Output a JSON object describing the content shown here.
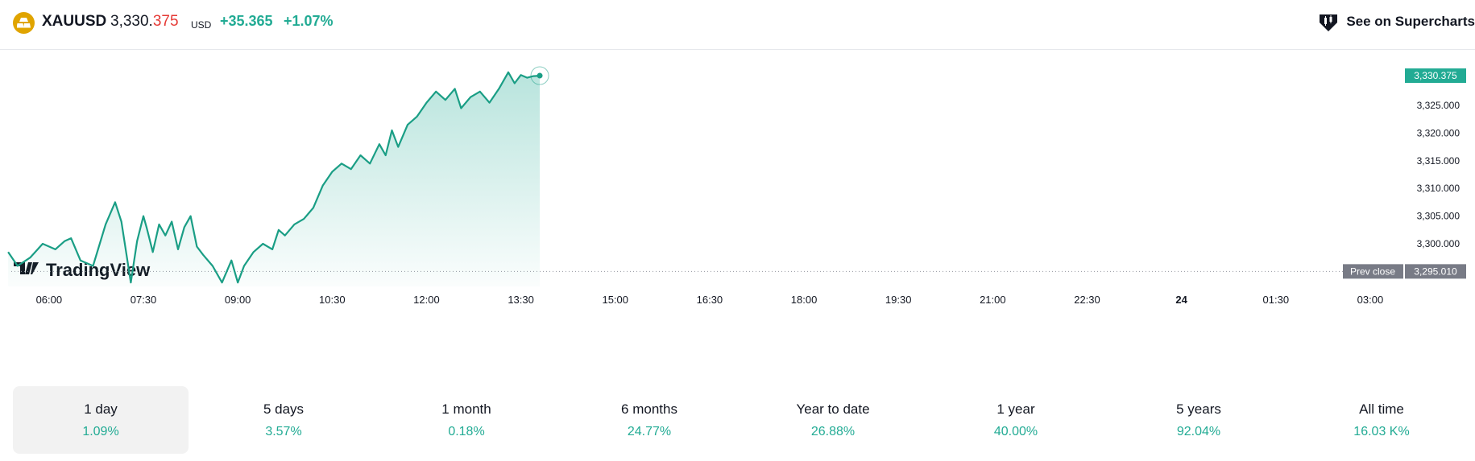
{
  "header": {
    "symbol": "XAUUSD",
    "price_main": "3,330.",
    "price_frac": "375",
    "currency": "USD",
    "change": "+35.365",
    "change_pct": "+1.07%",
    "supercharts_label": "See on Supercharts",
    "symbol_icon": "gold-bars-icon",
    "supercharts_icon": "supercharts-icon"
  },
  "colors": {
    "line": "#1a9e85",
    "up": "#22ab94",
    "down": "#e53935",
    "prev_close_tag": "#787b86",
    "last_price_tag": "#22ab94"
  },
  "watermark": {
    "text": "TradingView"
  },
  "chart_data": {
    "type": "area",
    "x_ticks": [
      "06:00",
      "07:30",
      "09:00",
      "10:30",
      "12:00",
      "13:30",
      "15:00",
      "16:30",
      "18:00",
      "19:30",
      "21:00",
      "22:30",
      "24",
      "01:30",
      "03:00"
    ],
    "x_tick_bold": "24",
    "y_ticks": [
      "3,325.000",
      "3,320.000",
      "3,315.000",
      "3,310.000",
      "3,305.000",
      "3,300.000"
    ],
    "y_range": [
      3292.3,
      3333.0
    ],
    "last_price": 3330.375,
    "last_price_label": "3,330.375",
    "prev_close": 3295.01,
    "prev_close_label": "3,295.010",
    "prev_close_text": "Prev close",
    "x_range_hours": [
      5.4,
      27.5
    ],
    "series": [
      {
        "x": [
          5.35,
          5.5,
          5.7,
          5.9,
          6.1,
          6.25,
          6.35,
          6.5,
          6.7,
          6.9,
          7.05,
          7.15,
          7.3,
          7.4,
          7.5,
          7.55,
          7.65,
          7.75,
          7.85,
          7.95,
          8.05,
          8.15,
          8.25,
          8.35,
          8.45,
          8.6,
          8.75,
          8.9,
          9.0,
          9.1,
          9.25,
          9.4,
          9.55,
          9.65,
          9.75,
          9.9,
          10.05,
          10.2,
          10.35,
          10.5,
          10.65,
          10.8,
          10.95,
          11.1,
          11.25,
          11.35,
          11.45,
          11.55,
          11.7,
          11.85,
          12.0,
          12.15,
          12.3,
          12.45,
          12.55,
          12.7,
          12.85,
          13.0,
          13.15,
          13.3,
          13.4,
          13.5,
          13.6,
          13.7,
          13.8
        ],
        "y": [
          3298.5,
          3296.0,
          3297.5,
          3300.0,
          3299.0,
          3300.5,
          3301.0,
          3297.0,
          3296.0,
          3303.5,
          3307.5,
          3304.0,
          3293.0,
          3300.5,
          3305.0,
          3303.0,
          3298.5,
          3303.5,
          3301.5,
          3304.0,
          3299.0,
          3303.0,
          3305.0,
          3299.5,
          3298.0,
          3296.0,
          3293.0,
          3297.0,
          3293.0,
          3296.0,
          3298.5,
          3300.0,
          3299.0,
          3302.5,
          3301.5,
          3303.5,
          3304.5,
          3306.5,
          3310.5,
          3313.0,
          3314.5,
          3313.5,
          3316.0,
          3314.5,
          3318.0,
          3316.0,
          3320.5,
          3317.5,
          3321.5,
          3323.0,
          3325.5,
          3327.5,
          3326.0,
          3328.0,
          3324.5,
          3326.5,
          3327.5,
          3325.5,
          3328.0,
          3331.0,
          3329.0,
          3330.5,
          3330.0,
          3330.3,
          3330.375
        ]
      }
    ]
  },
  "periods": [
    {
      "label": "1 day",
      "value": "1.09%",
      "active": true
    },
    {
      "label": "5 days",
      "value": "3.57%"
    },
    {
      "label": "1 month",
      "value": "0.18%"
    },
    {
      "label": "6 months",
      "value": "24.77%"
    },
    {
      "label": "Year to date",
      "value": "26.88%"
    },
    {
      "label": "1 year",
      "value": "40.00%"
    },
    {
      "label": "5 years",
      "value": "92.04%"
    },
    {
      "label": "All time",
      "value": "16.03 K%"
    }
  ]
}
